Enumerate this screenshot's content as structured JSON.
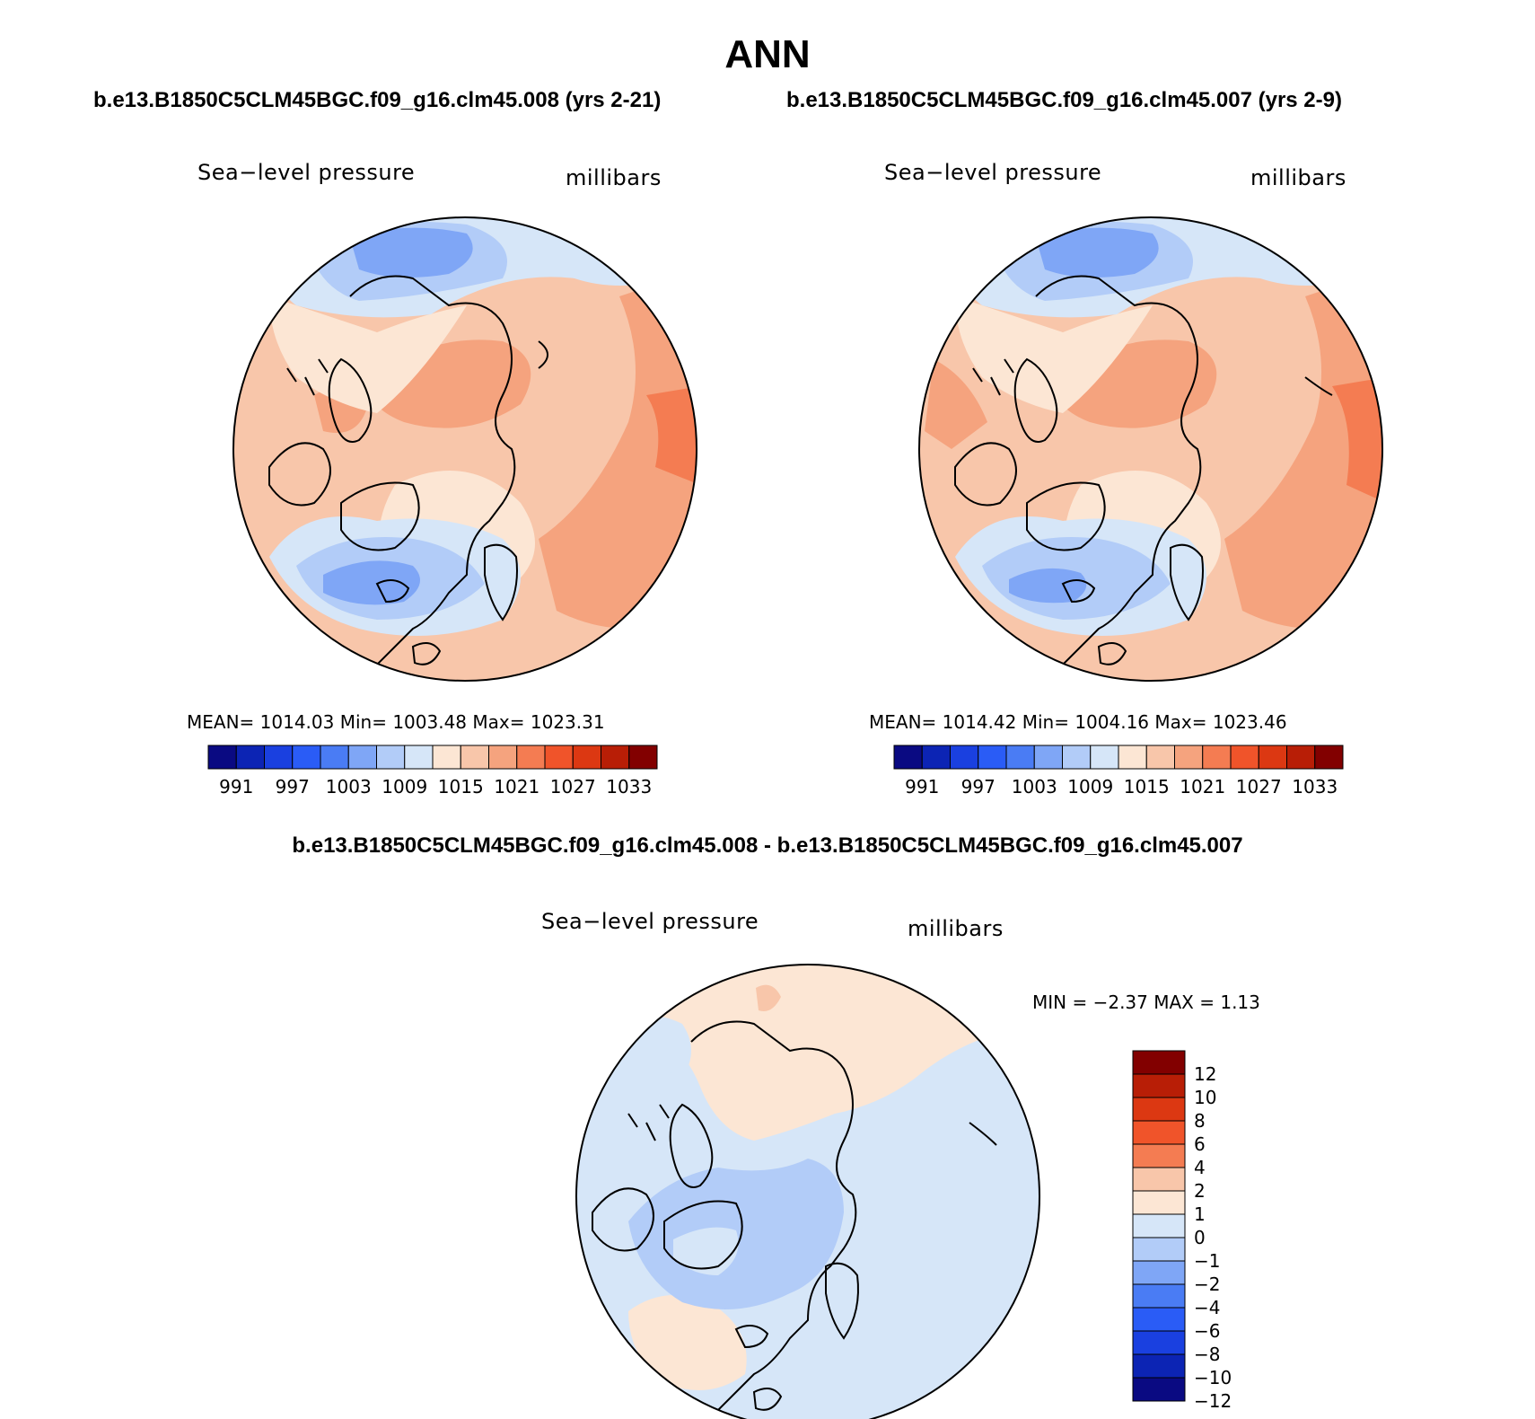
{
  "title": "ANN",
  "panels": {
    "case1": {
      "heading": "b.e13.B1850C5CLM45BGC.f09_g16.clm45.008 (yrs 2-21)",
      "variable": "Sea−level pressure",
      "units": "millibars",
      "stats": "MEAN=  1014.03    Min=  1003.48    Max=  1023.31"
    },
    "case2": {
      "heading": "b.e13.B1850C5CLM45BGC.f09_g16.clm45.007 (yrs 2-9)",
      "variable": "Sea−level pressure",
      "units": "millibars",
      "stats": "MEAN=  1014.42    Min=  1004.16    Max=  1023.46"
    },
    "diff": {
      "heading": "b.e13.B1850C5CLM45BGC.f09_g16.clm45.008 - b.e13.B1850C5CLM45BGC.f09_g16.clm45.007",
      "variable": "Sea−level pressure",
      "units": "millibars",
      "stats": "MIN =    −2.37  MAX =     1.13"
    }
  },
  "colorbars": {
    "abs": {
      "colors": [
        "#0a0a82",
        "#0c24b4",
        "#1a40e0",
        "#2a5cf6",
        "#4a7cf4",
        "#7fa6f6",
        "#b2ccf8",
        "#d6e6f8",
        "#fce6d4",
        "#f8c6aa",
        "#f5a37e",
        "#f47c52",
        "#f0542a",
        "#dc3812",
        "#b81e06",
        "#820000"
      ],
      "ticks": [
        "991",
        "997",
        "1003",
        "1009",
        "1015",
        "1021",
        "1027",
        "1033"
      ]
    },
    "diff": {
      "colors": [
        "#820000",
        "#b81e06",
        "#dc3812",
        "#f0542a",
        "#f47c52",
        "#f8c6aa",
        "#fce6d4",
        "#d6e6f8",
        "#b2ccf8",
        "#7fa6f6",
        "#4a7cf4",
        "#2a5cf6",
        "#1a40e0",
        "#0c24b4",
        "#0a0a82"
      ],
      "ticks": [
        "12",
        "10",
        "8",
        "6",
        "4",
        "2",
        "1",
        "0",
        "−1",
        "−2",
        "−4",
        "−6",
        "−8",
        "−10",
        "−12"
      ]
    }
  }
}
